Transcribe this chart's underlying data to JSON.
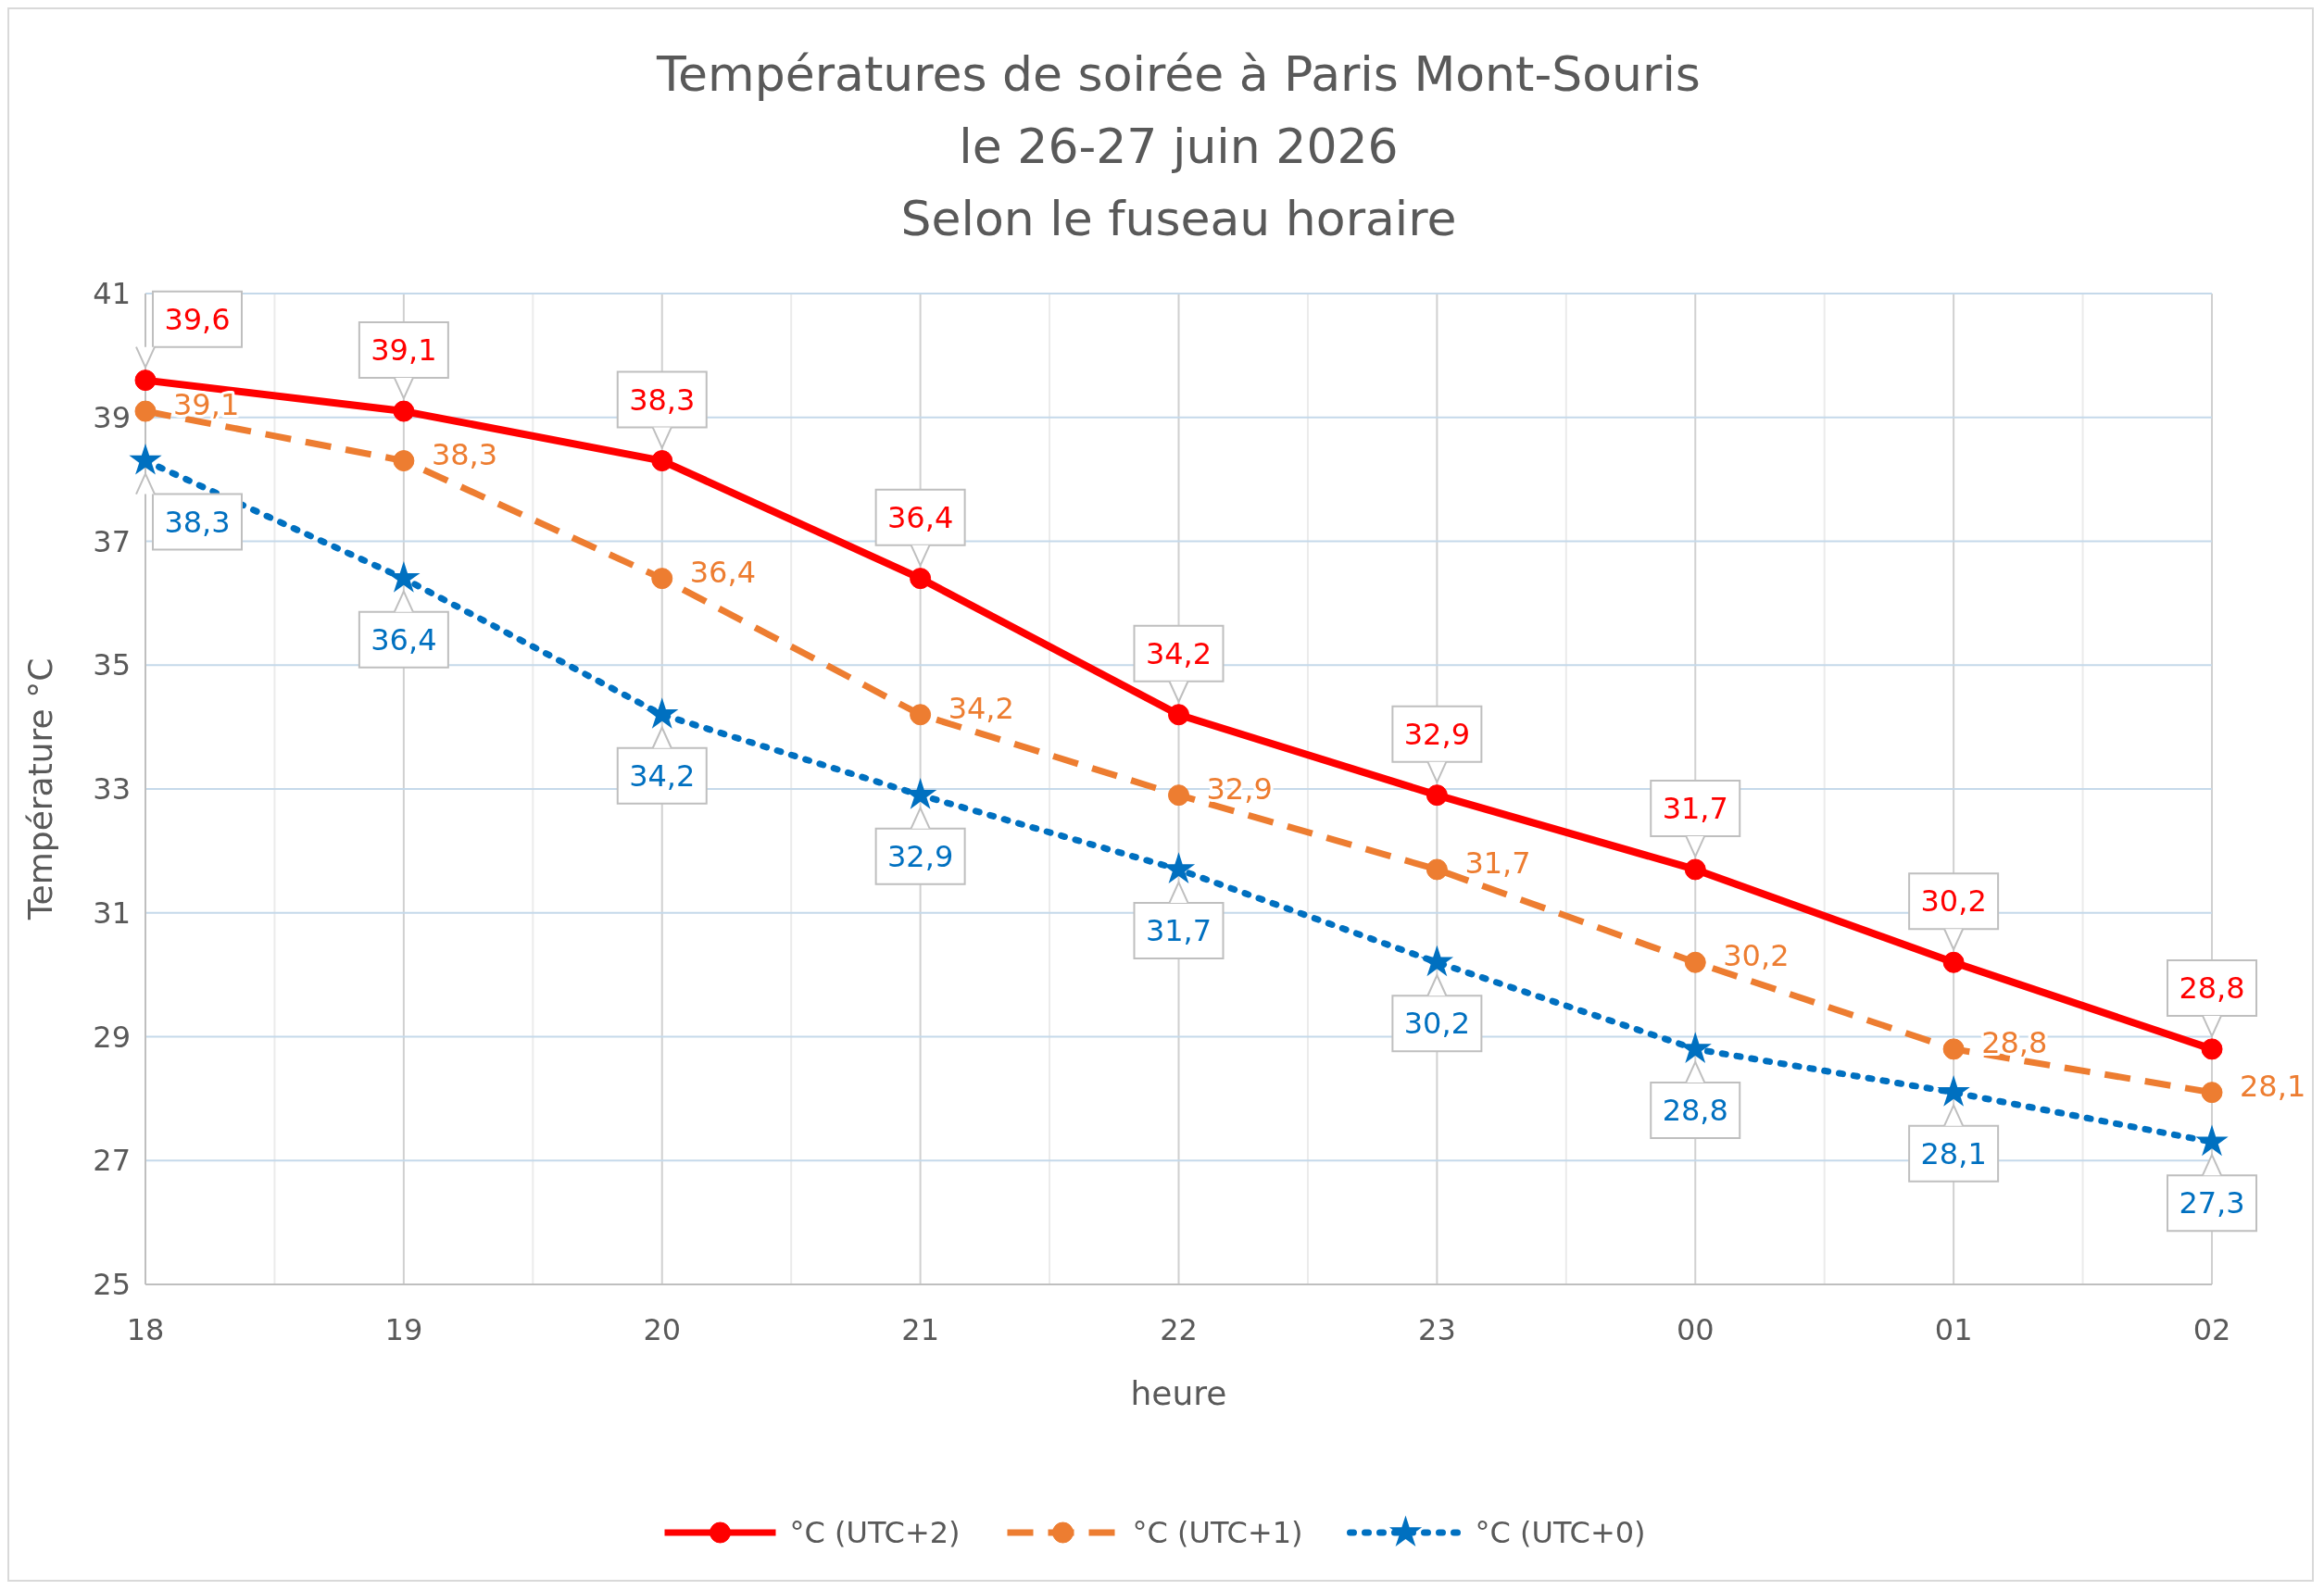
{
  "chart_data": {
    "type": "line",
    "title": "Températures de soirée à Paris Mont-Souris\nle 26-27 juin 2026\nSelon le fuseau horaire",
    "xlabel": "heure",
    "ylabel": "Température °C",
    "categories": [
      "18",
      "19",
      "20",
      "21",
      "22",
      "23",
      "00",
      "01",
      "02"
    ],
    "ylim": [
      25,
      41
    ],
    "yticks": [
      25,
      27,
      29,
      31,
      33,
      35,
      37,
      39,
      41
    ],
    "grid": true,
    "legend": "bottom",
    "series": [
      {
        "name": "°C (UTC+2)",
        "color": "#ff0000",
        "line_style": "solid",
        "marker": "circle",
        "values": [
          39.6,
          39.1,
          38.3,
          36.4,
          34.2,
          32.9,
          31.7,
          30.2,
          28.8
        ],
        "value_labels": [
          "39,6",
          "39,1",
          "38,3",
          "36,4",
          "34,2",
          "32,9",
          "31,7",
          "30,2",
          "28,8"
        ]
      },
      {
        "name": "°C (UTC+1)",
        "color": "#ed7d31",
        "line_style": "dashed",
        "marker": "circle",
        "values": [
          39.1,
          38.3,
          36.4,
          34.2,
          32.9,
          31.7,
          30.2,
          28.8,
          28.1
        ],
        "value_labels": [
          "39,1",
          "38,3",
          "36,4",
          "34,2",
          "32,9",
          "31,7",
          "30,2",
          "28,8",
          "28,1"
        ]
      },
      {
        "name": "°C (UTC+0)",
        "color": "#0070c0",
        "line_style": "dotted",
        "marker": "star",
        "values": [
          38.3,
          36.4,
          34.2,
          32.9,
          31.7,
          30.2,
          28.8,
          28.1,
          27.3
        ],
        "value_labels": [
          "38,3",
          "36,4",
          "34,2",
          "32,9",
          "31,7",
          "30,2",
          "28,8",
          "28,1",
          "27,3"
        ]
      }
    ]
  }
}
